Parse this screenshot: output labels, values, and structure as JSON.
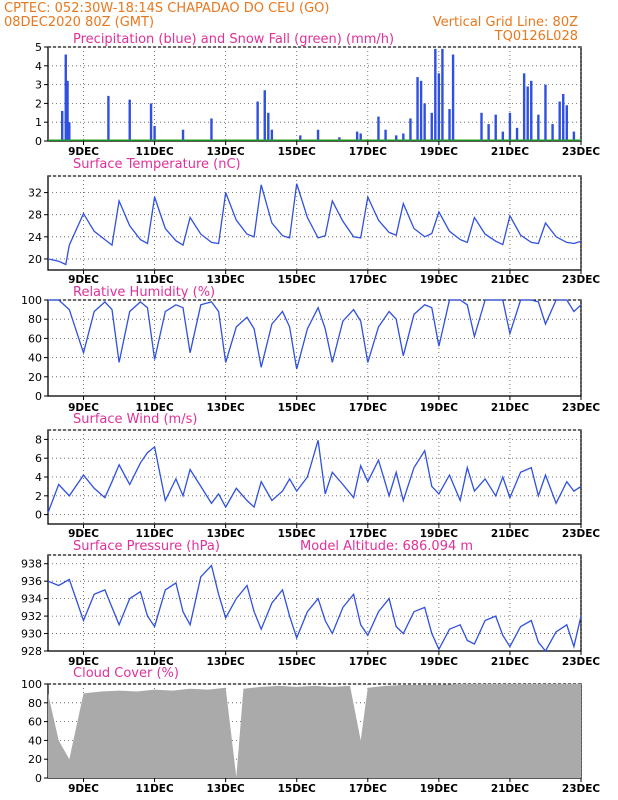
{
  "header": {
    "line1_left": "CPTEC:   052:30W-18:14S   CHAPADAO DO CEU (GO)",
    "line2_left": "08DEC2020 80Z (GMT)",
    "line2_right": "Vertical Grid Line: 80Z",
    "line3_right": "TQ0126L028"
  },
  "x_tick_labels": [
    "9DEC",
    "11DEC",
    "13DEC",
    "15DEC",
    "17DEC",
    "19DEC",
    "21DEC",
    "23DEC"
  ],
  "colors": {
    "series": "#3050e0",
    "snow": "#20a020",
    "cloud": "#aaaaaa",
    "header": "#e8781e",
    "title": "#e0309a"
  },
  "chart_data": [
    {
      "type": "bar",
      "title": "Precipitation (blue) and Snow Fall (green) (mm/h)",
      "ylim": [
        0,
        5
      ],
      "yticks": [
        0,
        1,
        2,
        3,
        4,
        5
      ],
      "x_days": [
        8.4,
        8.5,
        8.55,
        8.6,
        9.7,
        10.3,
        10.9,
        11.0,
        11.8,
        12.6,
        13.9,
        14.1,
        14.2,
        14.3,
        15.1,
        15.6,
        16.2,
        16.7,
        16.8,
        17.3,
        17.5,
        17.8,
        18.0,
        18.2,
        18.4,
        18.5,
        18.6,
        18.8,
        18.9,
        19.0,
        19.1,
        19.3,
        19.4,
        20.2,
        20.4,
        20.6,
        20.8,
        21.0,
        21.2,
        21.4,
        21.5,
        21.6,
        21.8,
        22.0,
        22.2,
        22.4,
        22.5,
        22.6,
        22.8
      ],
      "series": [
        {
          "name": "Precipitation",
          "values": [
            1.6,
            4.6,
            3.2,
            1.0,
            2.4,
            2.2,
            2.0,
            0.8,
            0.6,
            1.2,
            2.1,
            2.7,
            1.5,
            0.6,
            0.3,
            0.6,
            0.2,
            0.5,
            0.4,
            1.3,
            0.6,
            0.3,
            0.4,
            1.2,
            3.4,
            3.2,
            2.0,
            1.5,
            4.9,
            3.6,
            4.9,
            1.7,
            4.6,
            1.5,
            0.9,
            1.4,
            0.5,
            1.5,
            0.7,
            3.6,
            2.9,
            3.2,
            1.4,
            3.0,
            0.9,
            2.1,
            2.5,
            1.9,
            0.5
          ]
        },
        {
          "name": "Snow Fall",
          "values": [
            0,
            0,
            0,
            0,
            0,
            0,
            0,
            0,
            0,
            0,
            0,
            0,
            0,
            0,
            0,
            0,
            0,
            0,
            0,
            0,
            0,
            0,
            0,
            0,
            0,
            0,
            0,
            0,
            0,
            0,
            0,
            0,
            0,
            0,
            0,
            0,
            0,
            0,
            0,
            0,
            0,
            0,
            0,
            0,
            0,
            0,
            0,
            0,
            0
          ]
        }
      ]
    },
    {
      "type": "line",
      "title": "Surface Temperature (nC)",
      "ylim": [
        18,
        35
      ],
      "yticks": [
        20,
        24,
        28,
        32
      ],
      "x_days": [
        8.0,
        8.3,
        8.5,
        8.6,
        9.0,
        9.3,
        9.6,
        9.8,
        10.0,
        10.3,
        10.6,
        10.8,
        11.0,
        11.3,
        11.6,
        11.8,
        12.0,
        12.3,
        12.6,
        12.8,
        13.0,
        13.3,
        13.6,
        13.8,
        14.0,
        14.3,
        14.6,
        14.8,
        15.0,
        15.3,
        15.6,
        15.8,
        16.0,
        16.3,
        16.6,
        16.8,
        17.0,
        17.3,
        17.6,
        17.8,
        18.0,
        18.3,
        18.6,
        18.8,
        19.0,
        19.3,
        19.6,
        19.8,
        20.0,
        20.3,
        20.6,
        20.8,
        21.0,
        21.3,
        21.6,
        21.8,
        22.0,
        22.3,
        22.6,
        22.8,
        23.0
      ],
      "series": [
        {
          "name": "",
          "values": [
            20.0,
            19.6,
            19.0,
            22.5,
            28.2,
            25.0,
            23.5,
            22.5,
            30.5,
            26.0,
            23.5,
            22.8,
            31.2,
            25.5,
            23.3,
            22.5,
            27.5,
            24.5,
            23.0,
            22.8,
            32.0,
            27.0,
            24.5,
            24.0,
            33.4,
            26.5,
            24.2,
            23.8,
            33.6,
            27.5,
            23.8,
            24.2,
            30.5,
            26.8,
            24.0,
            23.8,
            31.2,
            27.0,
            24.8,
            24.3,
            30.0,
            25.5,
            24.0,
            24.6,
            28.5,
            25.0,
            23.5,
            23.0,
            27.5,
            24.5,
            23.2,
            22.6,
            27.8,
            24.3,
            23.0,
            22.8,
            26.5,
            24.0,
            23.0,
            22.8,
            23.2
          ]
        }
      ]
    },
    {
      "type": "line",
      "title": "Relative Humidity (%)",
      "ylim": [
        0,
        100
      ],
      "yticks": [
        0,
        20,
        40,
        60,
        80,
        100
      ],
      "x_days": [
        8.0,
        8.3,
        8.6,
        9.0,
        9.3,
        9.6,
        9.8,
        10.0,
        10.3,
        10.6,
        10.8,
        11.0,
        11.3,
        11.6,
        11.8,
        12.0,
        12.3,
        12.6,
        12.8,
        13.0,
        13.3,
        13.6,
        13.8,
        14.0,
        14.3,
        14.6,
        14.8,
        15.0,
        15.3,
        15.6,
        15.8,
        16.0,
        16.3,
        16.6,
        16.8,
        17.0,
        17.3,
        17.6,
        17.8,
        18.0,
        18.3,
        18.6,
        18.8,
        19.0,
        19.3,
        19.6,
        19.8,
        20.0,
        20.3,
        20.6,
        20.8,
        21.0,
        21.3,
        21.6,
        21.8,
        22.0,
        22.3,
        22.6,
        22.8,
        23.0
      ],
      "series": [
        {
          "name": "",
          "values": [
            100,
            100,
            90,
            45,
            88,
            98,
            90,
            35,
            88,
            98,
            92,
            38,
            88,
            95,
            92,
            45,
            95,
            98,
            88,
            35,
            72,
            82,
            70,
            30,
            75,
            88,
            72,
            28,
            70,
            92,
            70,
            35,
            78,
            90,
            78,
            35,
            72,
            88,
            80,
            42,
            85,
            95,
            92,
            52,
            100,
            100,
            95,
            62,
            100,
            100,
            100,
            65,
            100,
            100,
            98,
            75,
            100,
            100,
            88,
            95
          ]
        }
      ]
    },
    {
      "type": "line",
      "title": "Surface Wind (m/s)",
      "ylim": [
        -1,
        9
      ],
      "yticks": [
        0,
        2,
        4,
        6,
        8
      ],
      "x_days": [
        8.0,
        8.3,
        8.6,
        9.0,
        9.3,
        9.6,
        9.8,
        10.0,
        10.3,
        10.6,
        10.8,
        11.0,
        11.3,
        11.6,
        11.8,
        12.0,
        12.3,
        12.6,
        12.8,
        13.0,
        13.3,
        13.6,
        13.8,
        14.0,
        14.3,
        14.6,
        14.8,
        15.0,
        15.3,
        15.6,
        15.8,
        16.0,
        16.3,
        16.6,
        16.8,
        17.0,
        17.3,
        17.6,
        17.8,
        18.0,
        18.3,
        18.6,
        18.8,
        19.0,
        19.3,
        19.6,
        19.8,
        20.0,
        20.3,
        20.6,
        20.8,
        21.0,
        21.3,
        21.6,
        21.8,
        22.0,
        22.3,
        22.6,
        22.8,
        23.0
      ],
      "series": [
        {
          "name": "",
          "values": [
            0.2,
            3.2,
            2.0,
            4.2,
            2.8,
            1.8,
            3.5,
            5.3,
            3.2,
            5.5,
            6.6,
            7.2,
            1.5,
            3.8,
            2.0,
            4.8,
            3.0,
            1.2,
            2.2,
            0.8,
            2.8,
            1.5,
            0.8,
            3.5,
            1.5,
            2.5,
            3.8,
            2.5,
            4.0,
            7.9,
            2.2,
            4.5,
            3.2,
            1.8,
            5.2,
            3.5,
            5.8,
            2.0,
            4.5,
            1.5,
            5.0,
            6.8,
            3.0,
            2.2,
            4.2,
            1.5,
            5.0,
            2.5,
            3.8,
            2.0,
            4.0,
            1.8,
            4.5,
            5.0,
            2.0,
            4.2,
            1.2,
            3.5,
            2.5,
            3.0
          ]
        }
      ]
    },
    {
      "type": "line",
      "title": "Surface Pressure (hPa)",
      "subtitle": "Model Altitude: 686.094 m",
      "ylim": [
        928,
        939
      ],
      "yticks": [
        928,
        930,
        932,
        934,
        936,
        938
      ],
      "x_days": [
        8.0,
        8.3,
        8.6,
        9.0,
        9.3,
        9.6,
        9.8,
        10.0,
        10.3,
        10.6,
        10.8,
        11.0,
        11.3,
        11.6,
        11.8,
        12.0,
        12.3,
        12.6,
        12.8,
        13.0,
        13.3,
        13.6,
        13.8,
        14.0,
        14.3,
        14.6,
        14.8,
        15.0,
        15.3,
        15.6,
        15.8,
        16.0,
        16.3,
        16.6,
        16.8,
        17.0,
        17.3,
        17.6,
        17.8,
        18.0,
        18.3,
        18.6,
        18.8,
        19.0,
        19.3,
        19.6,
        19.8,
        20.0,
        20.3,
        20.6,
        20.8,
        21.0,
        21.3,
        21.6,
        21.8,
        22.0,
        22.3,
        22.6,
        22.8,
        23.0
      ],
      "series": [
        {
          "name": "",
          "values": [
            936.0,
            935.5,
            936.2,
            931.5,
            934.5,
            935.0,
            933.0,
            931.0,
            934.0,
            934.8,
            932.0,
            930.8,
            935.0,
            935.8,
            932.5,
            931.0,
            936.5,
            937.8,
            934.5,
            931.8,
            934.0,
            935.5,
            932.5,
            930.5,
            933.5,
            935.0,
            932.0,
            929.5,
            932.5,
            934.0,
            931.5,
            930.0,
            933.0,
            934.5,
            931.0,
            929.8,
            932.5,
            934.0,
            930.8,
            930.0,
            932.5,
            933.0,
            930.0,
            928.2,
            930.5,
            931.0,
            929.2,
            928.8,
            931.5,
            932.0,
            929.8,
            928.5,
            930.8,
            931.5,
            929.0,
            928.0,
            930.2,
            931.0,
            928.5,
            932.0
          ]
        }
      ]
    },
    {
      "type": "bar",
      "title": "Cloud Cover (%)",
      "ylim": [
        0,
        100
      ],
      "yticks": [
        0,
        20,
        40,
        60,
        80,
        100
      ],
      "x_days": [
        8.0,
        8.3,
        8.6,
        9.0,
        9.5,
        10.0,
        10.5,
        11.0,
        11.5,
        12.0,
        12.5,
        13.0,
        13.3,
        13.5,
        14.0,
        14.5,
        15.0,
        15.5,
        16.0,
        16.5,
        16.8,
        17.0,
        17.5,
        18.0,
        18.5,
        19.0,
        19.5,
        20.0,
        20.5,
        21.0,
        21.5,
        22.0,
        22.5,
        23.0
      ],
      "series": [
        {
          "name": "",
          "values": [
            90,
            40,
            20,
            90,
            92,
            93,
            92,
            94,
            93,
            95,
            94,
            96,
            1,
            95,
            97,
            98,
            97,
            98,
            97,
            98,
            40,
            96,
            98,
            99,
            99,
            99,
            100,
            100,
            100,
            100,
            100,
            100,
            100,
            100
          ]
        }
      ]
    }
  ]
}
